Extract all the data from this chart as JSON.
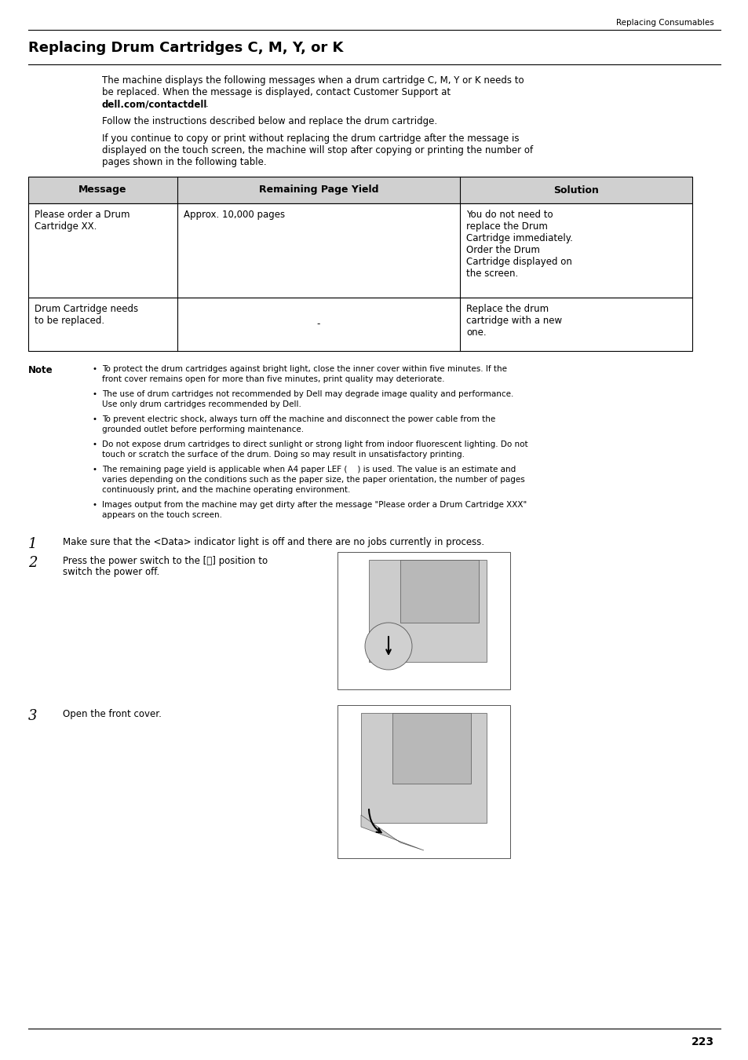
{
  "page_header_right": "Replacing Consumables",
  "section_title": "Replacing Drum Cartridges C, M, Y, or K",
  "table_headers": [
    "Message",
    "Remaining Page Yield",
    "Solution"
  ],
  "table_row1_col0_lines": [
    "Please order a Drum",
    "Cartridge XX."
  ],
  "table_row1_col1": "Approx. 10,000 pages",
  "table_row1_col2_lines": [
    "You do not need to",
    "replace the Drum",
    "Cartridge immediately.",
    "Order the Drum",
    "Cartridge displayed on",
    "the screen."
  ],
  "table_row2_col0_lines": [
    "Drum Cartridge needs",
    "to be replaced."
  ],
  "table_row2_col1": "-",
  "table_row2_col2_lines": [
    "Replace the drum",
    "cartridge with a new",
    "one."
  ],
  "note_label": "Note",
  "note_lines_wrapped": [
    [
      "To protect the drum cartridges against bright light, close the inner cover within five minutes. If the",
      "front cover remains open for more than five minutes, print quality may deteriorate."
    ],
    [
      "The use of drum cartridges not recommended by Dell may degrade image quality and performance.",
      "Use only drum cartridges recommended by Dell."
    ],
    [
      "To prevent electric shock, always turn off the machine and disconnect the power cable from the",
      "grounded outlet before performing maintenance."
    ],
    [
      "Do not expose drum cartridges to direct sunlight or strong light from indoor fluorescent lighting. Do not",
      "touch or scratch the surface of the drum. Doing so may result in unsatisfactory printing."
    ],
    [
      "The remaining page yield is applicable when A4 paper LEF (    ) is used. The value is an estimate and",
      "varies depending on the conditions such as the paper size, the paper orientation, the number of pages",
      "continuously print, and the machine operating environment."
    ],
    [
      "Images output from the machine may get dirty after the message \"Please order a Drum Cartridge XXX\"",
      "appears on the touch screen."
    ]
  ],
  "step1_text": "Make sure that the <Data> indicator light is off and there are no jobs currently in process.",
  "step2_line1": "Press the power switch to the [ⓨ] position to",
  "step2_line2": "switch the power off.",
  "step3_text": "Open the front cover.",
  "page_number": "223",
  "bg_color": "#ffffff",
  "para1_lines": [
    "The machine displays the following messages when a drum cartridge C, M, Y or K needs to",
    "be replaced. When the message is displayed, contact Customer Support at"
  ],
  "para1_bold": "dell.com/contactdell",
  "para2": "Follow the instructions described below and replace the drum cartridge.",
  "para3_lines": [
    "If you continue to copy or print without replacing the drum cartridge after the message is",
    "displayed on the touch screen, the machine will stop after copying or printing the number of",
    "pages shown in the following table."
  ]
}
